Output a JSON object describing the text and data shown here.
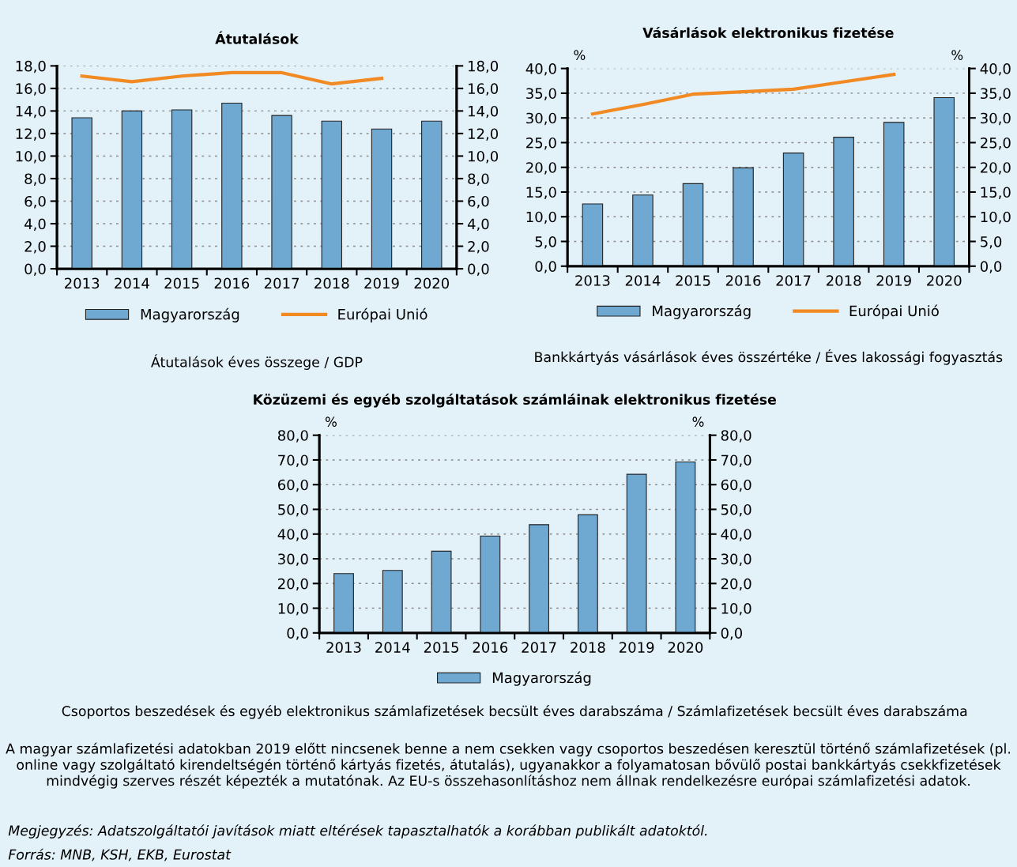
{
  "chart_data": [
    {
      "type": "bar",
      "title": "Átutalások",
      "categories": [
        "2013",
        "2014",
        "2015",
        "2016",
        "2017",
        "2018",
        "2019",
        "2020"
      ],
      "series": [
        {
          "name": "Magyarország",
          "color": "#6fa8d0",
          "values": [
            13.4,
            14.0,
            14.1,
            14.7,
            13.6,
            13.1,
            12.4,
            13.1
          ]
        },
        {
          "name": "Európai Unió",
          "type": "line",
          "color": "#f28a23",
          "values": [
            17.1,
            16.6,
            17.1,
            17.4,
            17.4,
            16.4,
            16.9,
            null
          ]
        }
      ],
      "ylim": [
        0,
        18
      ],
      "yticks": [
        {
          "value": 0,
          "label": "0,0"
        },
        {
          "value": 2,
          "label": "2,0"
        },
        {
          "value": 4,
          "label": "4,0"
        },
        {
          "value": 6,
          "label": "6,0"
        },
        {
          "value": 8,
          "label": "8,0"
        },
        {
          "value": 10,
          "label": "10,0"
        },
        {
          "value": 12,
          "label": "12,0"
        },
        {
          "value": 14,
          "label": "14,0"
        },
        {
          "value": 16,
          "label": "16,0"
        },
        {
          "value": 18,
          "label": "18,0"
        }
      ],
      "y2lim": [
        0,
        18
      ],
      "y2ticks": [
        {
          "value": 0,
          "label": "0,0"
        },
        {
          "value": 2,
          "label": "2,0"
        },
        {
          "value": 4,
          "label": "4,0"
        },
        {
          "value": 6,
          "label": "6,0"
        },
        {
          "value": 8,
          "label": "8,0"
        },
        {
          "value": 10,
          "label": "10,0"
        },
        {
          "value": 12,
          "label": "12,0"
        },
        {
          "value": 14,
          "label": "14,0"
        },
        {
          "value": 16,
          "label": "16,0"
        },
        {
          "value": 18,
          "label": "18,0"
        }
      ],
      "grid": "y",
      "legend": "bottom",
      "line_style": "solid",
      "marker": "none",
      "annotations": [
        "Átutalások éves összege / GDP"
      ]
    },
    {
      "type": "bar",
      "title": "Vásárlások elektronikus fizetése",
      "ylabel": "%",
      "y2label": "%",
      "categories": [
        "2013",
        "2014",
        "2015",
        "2016",
        "2017",
        "2018",
        "2019",
        "2020"
      ],
      "series": [
        {
          "name": "Magyarország",
          "color": "#6fa8d0",
          "values": [
            12.6,
            14.4,
            16.7,
            19.9,
            22.9,
            26.1,
            29.1,
            34.1
          ]
        },
        {
          "name": "Európai Unió",
          "type": "line",
          "color": "#f28a23",
          "values": [
            30.8,
            32.7,
            34.8,
            35.3,
            35.8,
            37.3,
            38.8,
            null
          ]
        }
      ],
      "ylim": [
        0,
        40
      ],
      "yticks": [
        {
          "value": 0,
          "label": "0,0"
        },
        {
          "value": 5,
          "label": "5,0"
        },
        {
          "value": 10,
          "label": "10,0"
        },
        {
          "value": 15,
          "label": "15,0"
        },
        {
          "value": 20,
          "label": "20,0"
        },
        {
          "value": 25,
          "label": "25,0"
        },
        {
          "value": 30,
          "label": "30,0"
        },
        {
          "value": 35,
          "label": "35,0"
        },
        {
          "value": 40,
          "label": "40,0"
        }
      ],
      "y2lim": [
        0,
        40
      ],
      "y2ticks": [
        {
          "value": 0,
          "label": "0,0"
        },
        {
          "value": 5,
          "label": "5,0"
        },
        {
          "value": 10,
          "label": "10,0"
        },
        {
          "value": 15,
          "label": "15,0"
        },
        {
          "value": 20,
          "label": "20,0"
        },
        {
          "value": 25,
          "label": "25,0"
        },
        {
          "value": 30,
          "label": "30,0"
        },
        {
          "value": 35,
          "label": "35,0"
        },
        {
          "value": 40,
          "label": "40,0"
        }
      ],
      "grid": "y",
      "legend": "bottom",
      "line_style": "solid",
      "marker": "none",
      "annotations": [
        "Bankkártyás vásárlások éves összértéke / Éves lakossági fogyasztás"
      ]
    },
    {
      "type": "bar",
      "title": "Közüzemi és egyéb szolgáltatások számláinak elektronikus fizetése",
      "ylabel": "%",
      "y2label": "%",
      "categories": [
        "2013",
        "2014",
        "2015",
        "2016",
        "2017",
        "2018",
        "2019",
        "2020"
      ],
      "series": [
        {
          "name": "Magyarország",
          "color": "#6fa8d0",
          "values": [
            24.0,
            25.3,
            33.1,
            39.2,
            43.8,
            47.8,
            64.2,
            69.2
          ]
        }
      ],
      "ylim": [
        0,
        80
      ],
      "yticks": [
        {
          "value": 0,
          "label": "0,0"
        },
        {
          "value": 10,
          "label": "10,0"
        },
        {
          "value": 20,
          "label": "20,0"
        },
        {
          "value": 30,
          "label": "30,0"
        },
        {
          "value": 40,
          "label": "40,0"
        },
        {
          "value": 50,
          "label": "50,0"
        },
        {
          "value": 60,
          "label": "60,0"
        },
        {
          "value": 70,
          "label": "70,0"
        },
        {
          "value": 80,
          "label": "80,0"
        }
      ],
      "y2lim": [
        0,
        80
      ],
      "y2ticks": [
        {
          "value": 0,
          "label": "0,0"
        },
        {
          "value": 10,
          "label": "10,0"
        },
        {
          "value": 20,
          "label": "20,0"
        },
        {
          "value": 30,
          "label": "30,0"
        },
        {
          "value": 40,
          "label": "40,0"
        },
        {
          "value": 50,
          "label": "50,0"
        },
        {
          "value": 60,
          "label": "60,0"
        },
        {
          "value": 70,
          "label": "70,0"
        },
        {
          "value": 80,
          "label": "80,0"
        }
      ],
      "grid": "y",
      "legend": "bottom",
      "annotations": [
        "Csoportos beszedések és egyéb elektronikus számlafizetések becsült éves darabszáma / Számlafizetések becsült éves darabszáma",
        "A magyar számlafizetési adatokban 2019 előtt nincsenek benne a nem csekken vagy csoportos beszedésen keresztül történő számlafizetések (pl. online vagy szolgáltató kirendeltségén történő kártyás fizetés, átutalás), ugyanakkor a folyamatosan bővülő postai bankkártyás csekkfizetések mindvégig szerves részét képezték a mutatónak. Az EU-s összehasonlításhoz nem állnak rendelkezésre európai számlafizetési adatok.",
        "Megjegyzés: Adatszolgáltatói javítások miatt eltérések tapasztalhatók a korábban publikált adatoktól.",
        "Forrás: MNB, KSH, EKB, Eurostat"
      ]
    }
  ]
}
